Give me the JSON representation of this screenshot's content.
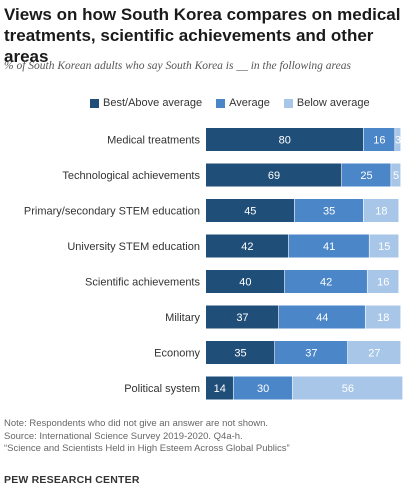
{
  "title": "Views on how South Korea compares on medical treatments, scientific achievements and other areas",
  "subtitle": "% of South Korean adults who say South Korea is __ in the following areas",
  "colors": {
    "best": "#1f4e79",
    "average": "#4a86c8",
    "below": "#a8c6e8"
  },
  "footer": {
    "note": "Note: Respondents who did not give an answer are not shown.",
    "source": "Source: International Science Survey 2019-2020. Q4a-h.",
    "report": "“Science and Scientists Held in High Esteem Across Global Publics”",
    "brand": "PEW RESEARCH CENTER"
  },
  "chart_data": {
    "type": "bar",
    "orientation": "horizontal",
    "stacked": true,
    "categories": [
      "Medical treatments",
      "Technological achievements",
      "Primary/secondary STEM education",
      "University STEM education",
      "Scientific achievements",
      "Military",
      "Economy",
      "Political system"
    ],
    "series": [
      {
        "name": "Best/Above average",
        "values": [
          80,
          69,
          45,
          42,
          40,
          37,
          35,
          14
        ]
      },
      {
        "name": "Average",
        "values": [
          16,
          25,
          35,
          41,
          42,
          44,
          37,
          30
        ]
      },
      {
        "name": "Below average",
        "values": [
          3,
          5,
          18,
          15,
          16,
          18,
          27,
          56
        ]
      }
    ],
    "xlim": [
      0,
      100
    ],
    "legend": "top",
    "grid": false
  }
}
